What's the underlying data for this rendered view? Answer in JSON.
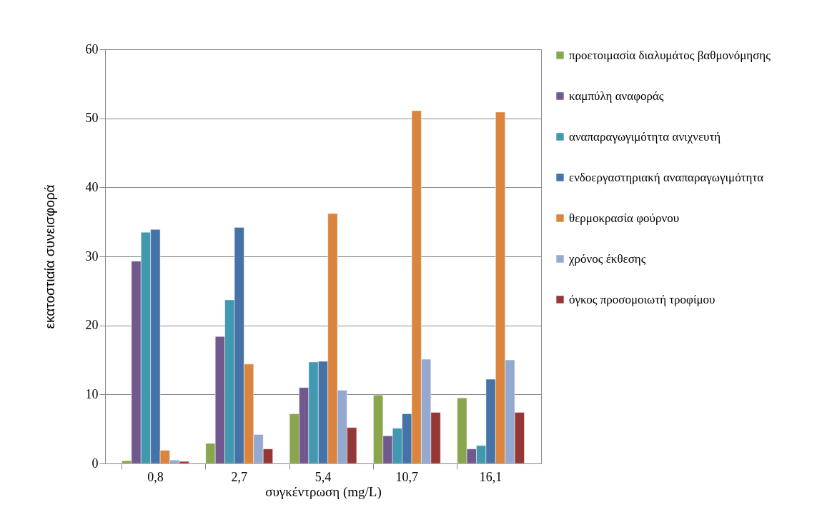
{
  "chart_data": {
    "type": "bar",
    "xlabel": "συγκέντρωση (mg/L)",
    "ylabel": "εκατοστιαία συνεισφορά",
    "categories": [
      "0,8",
      "2,7",
      "5,4",
      "10,7",
      "16,1"
    ],
    "ylim": [
      0,
      60
    ],
    "yticks": [
      0,
      10,
      20,
      30,
      40,
      50,
      60
    ],
    "grid": "y",
    "legend": "right",
    "series": [
      {
        "name": "προετοιμασία διαλυμάτος βαθμονόμησης",
        "color": "#8aa64c",
        "values": [
          0.4,
          2.9,
          7.2,
          9.9,
          9.5
        ]
      },
      {
        "name": "καμπύλη αναφοράς",
        "color": "#71588f",
        "values": [
          29.3,
          18.4,
          11.0,
          4.0,
          2.1
        ]
      },
      {
        "name": "αναπαραγωγιμότητα ανιχνευτή",
        "color": "#4198af",
        "values": [
          33.5,
          23.7,
          14.7,
          5.1,
          2.6
        ]
      },
      {
        "name": "ενδοεργαστηριακή αναπαραγωγιμότητα",
        "color": "#4572a7",
        "values": [
          33.9,
          34.2,
          14.8,
          7.2,
          12.2
        ]
      },
      {
        "name": "θερμοκρασία φούρνου",
        "color": "#db843d",
        "values": [
          1.9,
          14.4,
          36.2,
          51.1,
          50.9
        ]
      },
      {
        "name": "χρόνος έκθεσης",
        "color": "#93a9cf",
        "values": [
          0.5,
          4.2,
          10.6,
          15.1,
          15.0
        ]
      },
      {
        "name": "όγκος προσομοιωτή τροφίμου",
        "color": "#953735",
        "values": [
          0.3,
          2.1,
          5.2,
          7.4,
          7.4
        ]
      }
    ]
  }
}
